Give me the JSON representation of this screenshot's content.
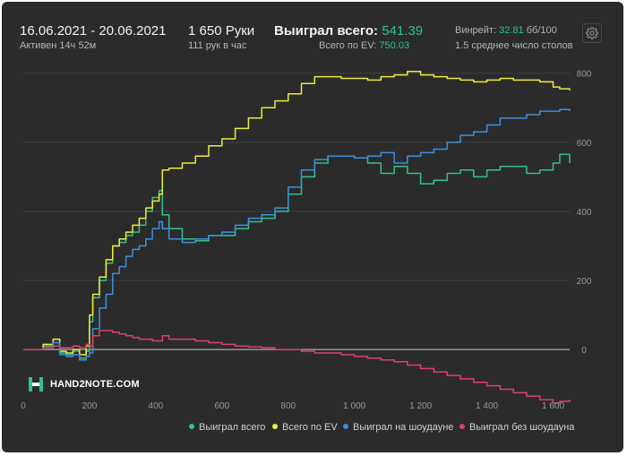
{
  "header": {
    "date_range": "16.06.2021 - 20.06.2021",
    "active": "Активен 14ч 52м",
    "hands": "1 650 Руки",
    "hands_per_hour": "111 рук в час",
    "won_total_label": "Выиграл всего:",
    "won_total_value": "541.39",
    "ev_total_label": "Всего по EV:",
    "ev_total_value": "750.03",
    "winrate_label": "Винрейт:",
    "winrate_value": "32.81",
    "winrate_unit": "бб/100",
    "avg_tables": "1.5 среднее число столов"
  },
  "logo": {
    "text": "HAND2NOTE.COM"
  },
  "colors": {
    "won_total": "#2fc28a",
    "ev_total": "#ecec3c",
    "showdown": "#3d8fe0",
    "no_showdown": "#e0406e"
  },
  "chart_data": {
    "type": "line",
    "xlim": [
      0,
      1650
    ],
    "ylim": [
      -150,
      820
    ],
    "x_ticks": [
      0,
      200,
      400,
      600,
      800,
      1000,
      1200,
      1400,
      1600
    ],
    "x_tick_labels": [
      "0",
      "200",
      "400",
      "600",
      "800",
      "1 000",
      "1 200",
      "1 400",
      "1 600"
    ],
    "y_ticks": [
      0,
      200,
      400,
      600,
      800
    ],
    "y_tick_labels": [
      "0",
      "200",
      "400",
      "600",
      "800"
    ],
    "grid": true,
    "legend_position": "bottom-right",
    "series": [
      {
        "name": "Выиграл всего",
        "color": "#2fc28a",
        "x": [
          0,
          60,
          90,
          110,
          130,
          150,
          170,
          190,
          200,
          210,
          230,
          250,
          270,
          290,
          310,
          330,
          350,
          370,
          390,
          410,
          420,
          440,
          480,
          520,
          560,
          600,
          640,
          680,
          720,
          760,
          800,
          840,
          880,
          920,
          960,
          1000,
          1040,
          1080,
          1120,
          1160,
          1200,
          1240,
          1280,
          1320,
          1360,
          1400,
          1440,
          1480,
          1520,
          1560,
          1600,
          1620,
          1650
        ],
        "values": [
          0,
          10,
          30,
          -10,
          -15,
          -5,
          -25,
          -5,
          80,
          150,
          200,
          250,
          300,
          310,
          330,
          340,
          360,
          400,
          440,
          460,
          390,
          350,
          320,
          315,
          330,
          330,
          350,
          370,
          380,
          400,
          450,
          500,
          540,
          560,
          560,
          555,
          540,
          510,
          530,
          510,
          480,
          490,
          510,
          520,
          500,
          520,
          530,
          530,
          510,
          520,
          540,
          565,
          540
        ]
      },
      {
        "name": "Всего по EV",
        "color": "#ecec3c",
        "x": [
          0,
          60,
          90,
          110,
          130,
          150,
          170,
          190,
          200,
          210,
          230,
          250,
          270,
          290,
          310,
          330,
          350,
          370,
          390,
          410,
          420,
          440,
          480,
          520,
          560,
          600,
          640,
          680,
          720,
          760,
          800,
          840,
          880,
          920,
          960,
          1000,
          1040,
          1080,
          1120,
          1160,
          1200,
          1240,
          1280,
          1320,
          1360,
          1400,
          1440,
          1480,
          1520,
          1560,
          1600,
          1620,
          1650
        ],
        "values": [
          0,
          15,
          30,
          -5,
          -10,
          0,
          -15,
          10,
          100,
          160,
          210,
          260,
          300,
          320,
          340,
          360,
          380,
          410,
          430,
          450,
          520,
          525,
          540,
          560,
          590,
          610,
          640,
          670,
          700,
          720,
          740,
          770,
          790,
          790,
          785,
          785,
          780,
          790,
          795,
          805,
          795,
          790,
          785,
          780,
          775,
          780,
          785,
          780,
          780,
          775,
          760,
          755,
          750
        ]
      },
      {
        "name": "Выиграл на шоудауне",
        "color": "#3d8fe0",
        "x": [
          0,
          60,
          90,
          110,
          130,
          150,
          170,
          190,
          200,
          210,
          230,
          250,
          270,
          290,
          310,
          330,
          350,
          370,
          390,
          410,
          420,
          440,
          480,
          520,
          560,
          600,
          640,
          680,
          720,
          760,
          800,
          840,
          880,
          920,
          960,
          1000,
          1040,
          1080,
          1120,
          1160,
          1200,
          1240,
          1280,
          1320,
          1360,
          1400,
          1440,
          1480,
          1520,
          1560,
          1600,
          1620,
          1650
        ],
        "values": [
          0,
          5,
          20,
          -15,
          -20,
          -15,
          -30,
          -20,
          -10,
          60,
          120,
          160,
          220,
          240,
          270,
          290,
          300,
          320,
          350,
          370,
          350,
          320,
          310,
          320,
          330,
          340,
          360,
          380,
          390,
          410,
          470,
          520,
          550,
          560,
          560,
          555,
          560,
          570,
          540,
          560,
          570,
          580,
          600,
          620,
          630,
          650,
          670,
          670,
          680,
          690,
          690,
          695,
          690
        ]
      },
      {
        "name": "Выиграл без шоудауна",
        "color": "#e0406e",
        "x": [
          0,
          60,
          90,
          110,
          130,
          150,
          170,
          190,
          200,
          210,
          230,
          250,
          270,
          290,
          310,
          330,
          350,
          370,
          390,
          410,
          420,
          440,
          480,
          520,
          560,
          600,
          640,
          680,
          720,
          760,
          800,
          840,
          880,
          920,
          960,
          1000,
          1040,
          1080,
          1120,
          1160,
          1200,
          1240,
          1280,
          1320,
          1360,
          1400,
          1440,
          1480,
          1520,
          1560,
          1600,
          1620,
          1650
        ],
        "values": [
          0,
          5,
          10,
          5,
          5,
          10,
          5,
          15,
          10,
          40,
          55,
          55,
          50,
          45,
          40,
          35,
          30,
          30,
          25,
          25,
          40,
          30,
          30,
          25,
          20,
          15,
          10,
          8,
          5,
          0,
          0,
          -5,
          -10,
          -10,
          -15,
          -20,
          -25,
          -30,
          -35,
          -45,
          -55,
          -65,
          -75,
          -85,
          -95,
          -105,
          -115,
          -125,
          -135,
          -145,
          -155,
          -150,
          -145
        ]
      }
    ]
  }
}
